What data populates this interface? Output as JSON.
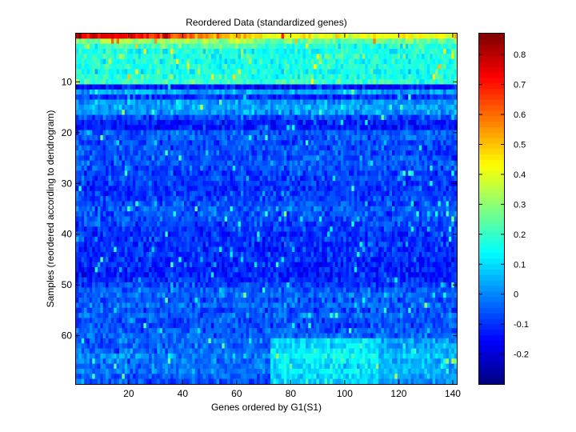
{
  "chart_data": {
    "type": "heatmap",
    "title": "Reordered Data (standardized genes)",
    "xlabel": "Genes ordered by G1(S1)",
    "ylabel": "Samples (reordered according to dendrogram)",
    "n_cols": 141,
    "n_rows": 69,
    "xlim": [
      0.5,
      141.5
    ],
    "ylim": [
      0.5,
      69.5
    ],
    "y_direction": "reverse",
    "x_ticks": [
      20,
      40,
      60,
      80,
      100,
      120,
      140
    ],
    "y_ticks": [
      10,
      20,
      30,
      40,
      50,
      60
    ],
    "colormap": "jet",
    "clim": [
      -0.3,
      0.87
    ],
    "colorbar_ticks": [
      -0.2,
      -0.1,
      0,
      0.1,
      0.2,
      0.3,
      0.4,
      0.5,
      0.6,
      0.7,
      0.8
    ],
    "colorbar_tick_labels": [
      "-0.2",
      "-0.1",
      "0",
      "0.1",
      "0.2",
      "0.3",
      "0.4",
      "0.5",
      "0.6",
      "0.7",
      "0.8"
    ],
    "row_levels": [
      0.42,
      0.26,
      0.18,
      0.16,
      0.18,
      0.17,
      0.17,
      0.15,
      0.18,
      0.2,
      -0.14,
      0.04,
      -0.1,
      0.02,
      0.04,
      0.02,
      -0.08,
      -0.12,
      -0.13,
      -0.05,
      -0.05,
      -0.07,
      -0.06,
      -0.07,
      -0.06,
      -0.06,
      -0.07,
      -0.08,
      -0.08,
      -0.09,
      -0.1,
      -0.09,
      -0.08,
      -0.07,
      -0.05,
      -0.06,
      -0.06,
      -0.08,
      -0.09,
      -0.1,
      -0.09,
      -0.1,
      -0.1,
      -0.1,
      -0.11,
      -0.11,
      -0.12,
      -0.12,
      -0.1,
      -0.08,
      -0.05,
      -0.03,
      -0.06,
      -0.04,
      -0.07,
      -0.04,
      -0.06,
      -0.07,
      -0.05,
      -0.04,
      -0.04,
      -0.04,
      -0.03,
      0.0,
      -0.02,
      -0.03,
      -0.02,
      -0.04,
      -0.06
    ]
  }
}
